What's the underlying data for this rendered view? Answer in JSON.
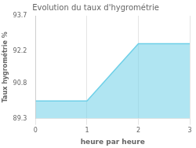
{
  "chart_data": {
    "type": "area",
    "title": "Evolution du taux d'hygrométrie",
    "xlabel": "heure par heure",
    "ylabel": "Taux hygrométrie %",
    "x": [
      0,
      1,
      2,
      3
    ],
    "series": [
      {
        "color": "#6fd0e8",
        "values": [
          90.05,
          90.05,
          92.5,
          92.5
        ]
      }
    ],
    "xlim": [
      0,
      3
    ],
    "xticks": [
      0,
      1,
      2,
      3
    ],
    "ylim": [
      89.3,
      93.7
    ],
    "yticks": [
      89.3,
      90.8,
      92.2,
      93.7
    ],
    "grid": true
  }
}
